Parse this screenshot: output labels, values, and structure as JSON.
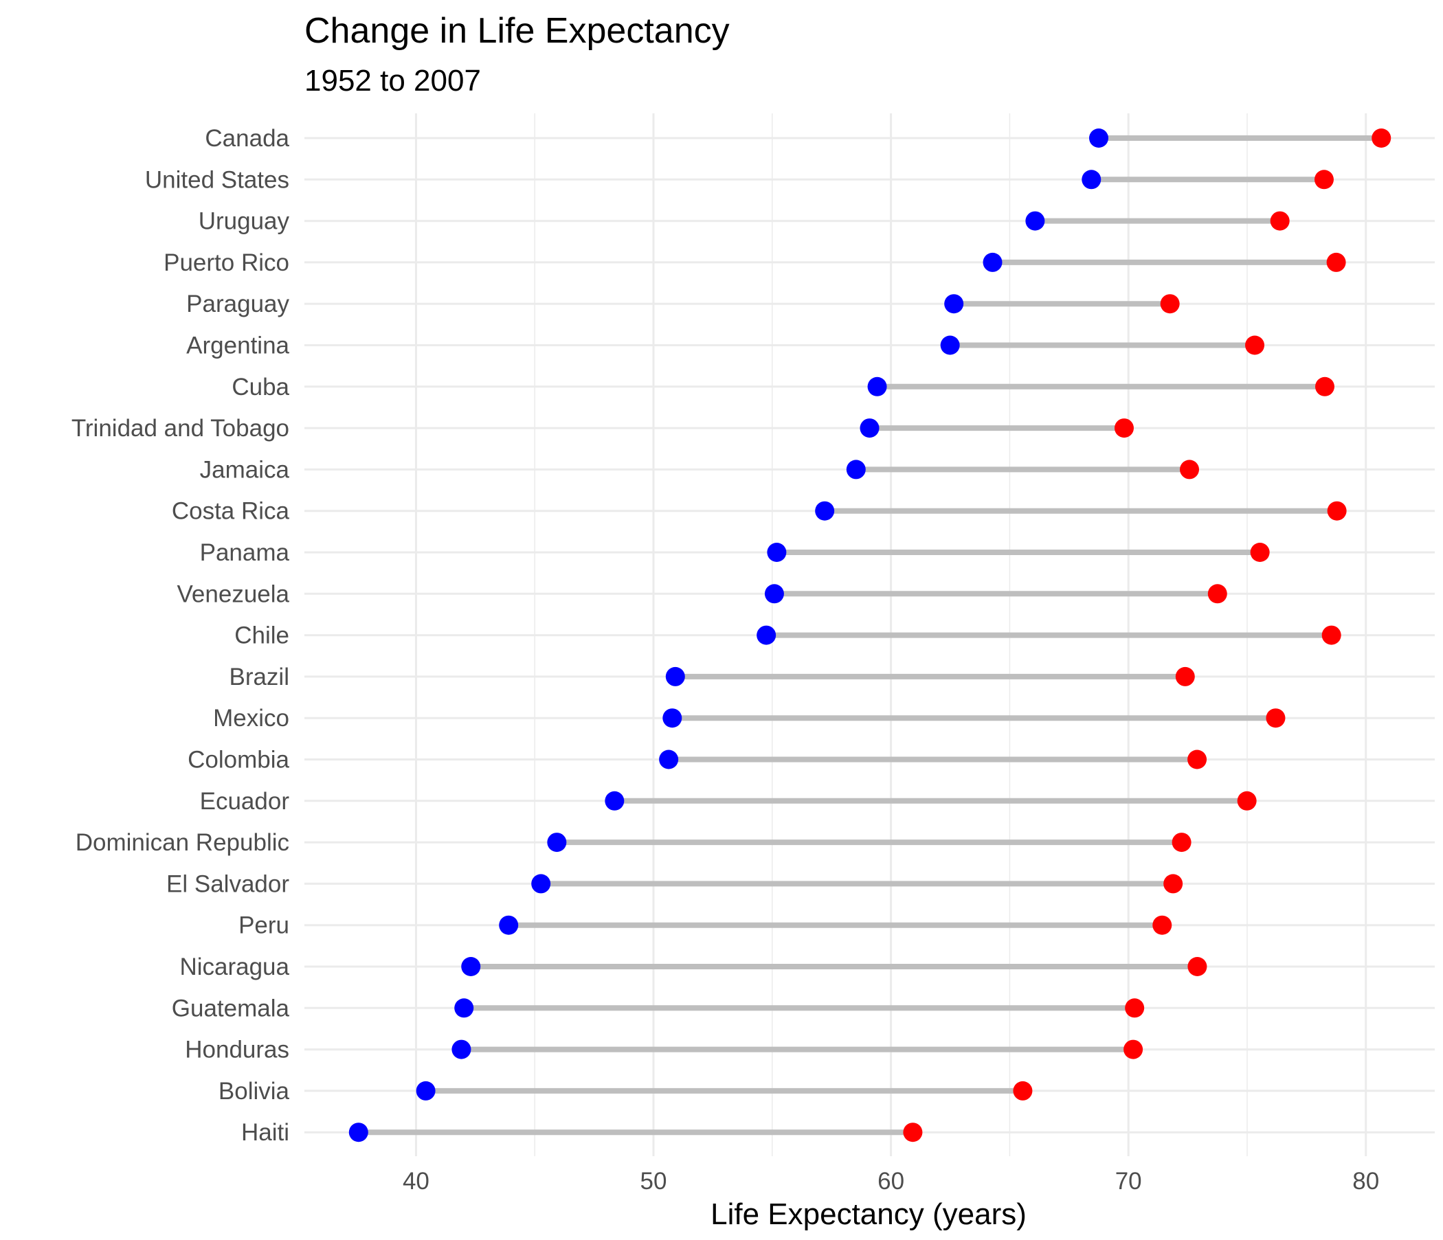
{
  "chart_data": {
    "type": "dumbbell",
    "title": "Change in Life Expectancy",
    "subtitle": "1952 to 2007",
    "xlabel": "Life Expectancy (years)",
    "ylabel": "",
    "xlim": [
      35.3,
      82.9
    ],
    "xticks": [
      40,
      50,
      60,
      70,
      80
    ],
    "grid": true,
    "legend": "none",
    "colors": {
      "start": "#0000ff",
      "end": "#ff0000",
      "segment": "#bebebe",
      "grid": "#ebebeb"
    },
    "series_names": {
      "start": "1952",
      "end": "2007"
    },
    "categories": [
      "Canada",
      "United States",
      "Uruguay",
      "Puerto Rico",
      "Paraguay",
      "Argentina",
      "Cuba",
      "Trinidad and Tobago",
      "Jamaica",
      "Costa Rica",
      "Panama",
      "Venezuela",
      "Chile",
      "Brazil",
      "Mexico",
      "Colombia",
      "Ecuador",
      "Dominican Republic",
      "El Salvador",
      "Peru",
      "Nicaragua",
      "Guatemala",
      "Honduras",
      "Bolivia",
      "Haiti"
    ],
    "start_values": [
      68.75,
      68.44,
      66.07,
      64.28,
      62.65,
      62.49,
      59.42,
      59.1,
      58.53,
      57.21,
      55.19,
      55.09,
      54.75,
      50.92,
      50.79,
      50.64,
      48.36,
      45.93,
      45.26,
      43.9,
      42.31,
      42.02,
      41.91,
      40.41,
      37.58
    ],
    "end_values": [
      80.65,
      78.24,
      76.38,
      78.75,
      71.75,
      75.32,
      78.27,
      69.82,
      72.57,
      78.78,
      75.54,
      73.75,
      78.55,
      72.39,
      76.2,
      72.89,
      74.99,
      72.24,
      71.88,
      71.42,
      72.9,
      70.26,
      70.2,
      65.55,
      60.92
    ]
  }
}
